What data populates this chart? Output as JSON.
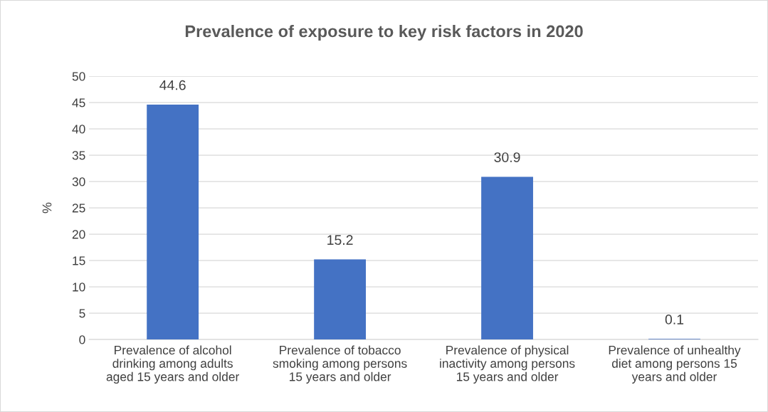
{
  "chart_data": {
    "type": "bar",
    "title": "Prevalence of exposure to key risk factors in 2020",
    "ylabel": "%",
    "categories": [
      "Prevalence of alcohol\ndrinking among adults\naged 15 years and older",
      "Prevalence of tobacco\nsmoking among persons\n15 years and older",
      "Prevalence of physical\ninactivity among persons\n15 years and older",
      "Prevalence of unhealthy\ndiet among persons 15\nyears and older"
    ],
    "values": [
      44.6,
      15.2,
      30.9,
      0.1
    ],
    "color": "#4472c4",
    "ylim": [
      0,
      50
    ],
    "yticks": [
      0,
      5,
      10,
      15,
      20,
      25,
      30,
      35,
      40,
      45,
      50
    ],
    "grid": "y",
    "data_labels": true
  }
}
